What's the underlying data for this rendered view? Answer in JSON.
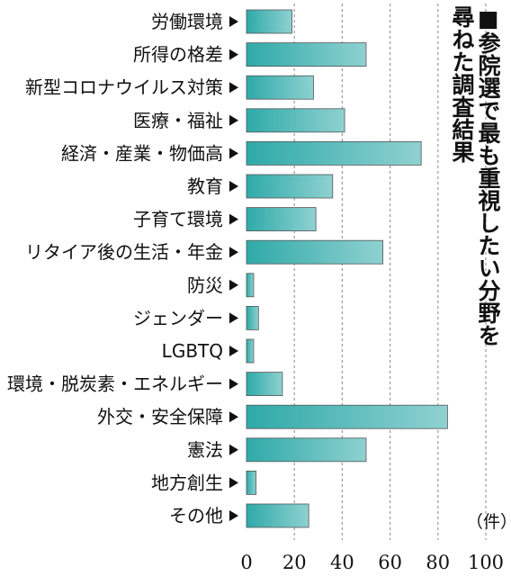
{
  "title_lines": [
    "■参院選で最も重視したい分野を",
    "尋ねた調査結果"
  ],
  "chart_data": {
    "type": "bar",
    "orientation": "horizontal",
    "title": "■参院選で最も重視したい分野を尋ねた調査結果",
    "unit": "（件）",
    "categories": [
      "労働環境",
      "所得の格差",
      "新型コロナウイルス対策",
      "医療・福祉",
      "経済・産業・物価高",
      "教育",
      "子育て環境",
      "リタイア後の生活・年金",
      "防災",
      "ジェンダー",
      "LGBTQ",
      "環境・脱炭素・エネルギー",
      "外交・安全保障",
      "憲法",
      "地方創生",
      "その他"
    ],
    "values": [
      19,
      50,
      28,
      41,
      73,
      36,
      29,
      57,
      3,
      5,
      3,
      15,
      84,
      50,
      4,
      26
    ],
    "xlim": [
      0,
      100
    ],
    "ticks": [
      0,
      20,
      40,
      60,
      80,
      100
    ],
    "grid": "vertical dashed",
    "colors": {
      "bar_start": "#2eaaa8",
      "bar_end": "#8fd1d1",
      "bar_border": "#555555",
      "grid": "#9a9a9a"
    }
  }
}
